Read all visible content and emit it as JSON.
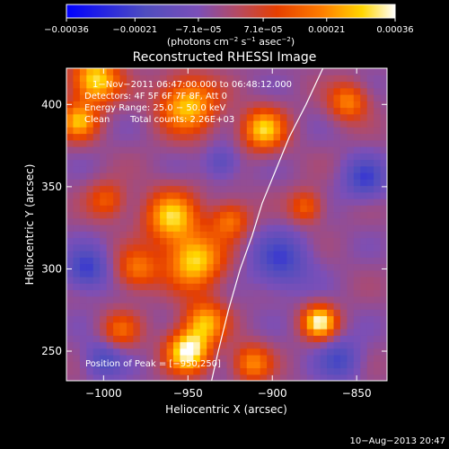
{
  "chart_data": {
    "type": "heatmap",
    "title": "Reconstructed RHESSI Image",
    "xlabel": "Heliocentric X (arcsec)",
    "ylabel": "Heliocentric Y (arcsec)",
    "xlim": [
      -1022,
      -832
    ],
    "ylim": [
      232,
      422
    ],
    "x_ticks": [
      {
        "value": -1000,
        "label": "−1000"
      },
      {
        "value": -950,
        "label": "−950"
      },
      {
        "value": -900,
        "label": "−900"
      },
      {
        "value": -850,
        "label": "−850"
      }
    ],
    "y_ticks": [
      {
        "value": 250,
        "label": "250"
      },
      {
        "value": 300,
        "label": "300"
      },
      {
        "value": 350,
        "label": "350"
      },
      {
        "value": 400,
        "label": "400"
      }
    ],
    "colorbar": {
      "range": [
        -0.00036,
        0.00036
      ],
      "ticks": [
        {
          "value": -0.00036,
          "label": "−0.00036"
        },
        {
          "value": -0.00021,
          "label": "−0.00021"
        },
        {
          "value": -7.1e-05,
          "label": "−7.1e−05"
        },
        {
          "value": 7.1e-05,
          "label": "7.1e−05"
        },
        {
          "value": 0.00021,
          "label": "0.00021"
        },
        {
          "value": 0.00036,
          "label": "0.00036"
        }
      ],
      "unit_label_main": "(photons cm",
      "unit_label_exp1": "−2",
      "unit_label_mid": " s",
      "unit_label_exp2": "−1",
      "unit_label_end1": " asec",
      "unit_label_exp3": "−2",
      "unit_label_close": ")"
    },
    "annotations": {
      "time_range": "1−Nov−2011 06:47:00.000 to 06:48:12.000",
      "detectors": "Detectors: 4F 5F 6F 7F 8F, Att 0",
      "energy": "Energy Range: 25.0 − 50.0 keV",
      "clean_label": "Clean",
      "total_counts": "Total counts: 2.26E+03",
      "peak": "Position of Peak = [−950,250]"
    },
    "limb_curve": [
      [
        -936,
        232
      ],
      [
        -932,
        250
      ],
      [
        -926,
        275
      ],
      [
        -919,
        300
      ],
      [
        -912,
        320
      ],
      [
        -906,
        340
      ],
      [
        -898,
        360
      ],
      [
        -890,
        380
      ],
      [
        -880,
        400
      ],
      [
        -870,
        422
      ]
    ],
    "blobs": [
      {
        "x": -1005,
        "y": 415,
        "sigma": 10,
        "amp": 0.9
      },
      {
        "x": -1015,
        "y": 390,
        "sigma": 8,
        "amp": 0.7
      },
      {
        "x": -950,
        "y": 400,
        "sigma": 12,
        "amp": 0.8
      },
      {
        "x": -905,
        "y": 385,
        "sigma": 9,
        "amp": 0.8
      },
      {
        "x": -855,
        "y": 402,
        "sigma": 8,
        "amp": 0.6
      },
      {
        "x": -960,
        "y": 332,
        "sigma": 11,
        "amp": 0.8
      },
      {
        "x": -946,
        "y": 305,
        "sigma": 12,
        "amp": 0.85
      },
      {
        "x": -980,
        "y": 300,
        "sigma": 9,
        "amp": 0.55
      },
      {
        "x": -940,
        "y": 268,
        "sigma": 9,
        "amp": 0.7
      },
      {
        "x": -950,
        "y": 250,
        "sigma": 9,
        "amp": 1.0
      },
      {
        "x": -990,
        "y": 263,
        "sigma": 8,
        "amp": 0.45
      },
      {
        "x": -925,
        "y": 330,
        "sigma": 8,
        "amp": 0.55
      },
      {
        "x": -872,
        "y": 268,
        "sigma": 7,
        "amp": 0.95
      },
      {
        "x": -880,
        "y": 338,
        "sigma": 7,
        "amp": 0.5
      },
      {
        "x": -998,
        "y": 342,
        "sigma": 8,
        "amp": 0.45
      },
      {
        "x": -912,
        "y": 243,
        "sigma": 8,
        "amp": 0.6
      },
      {
        "x": -1010,
        "y": 300,
        "sigma": 9,
        "amp": -0.5
      },
      {
        "x": -895,
        "y": 305,
        "sigma": 12,
        "amp": -0.45
      },
      {
        "x": -845,
        "y": 355,
        "sigma": 9,
        "amp": -0.45
      },
      {
        "x": -1000,
        "y": 245,
        "sigma": 8,
        "amp": -0.4
      },
      {
        "x": -860,
        "y": 245,
        "sigma": 9,
        "amp": -0.4
      },
      {
        "x": -930,
        "y": 365,
        "sigma": 7,
        "amp": -0.35
      }
    ]
  },
  "footer": {
    "timestamp": "10−Aug−2013 20:47"
  }
}
